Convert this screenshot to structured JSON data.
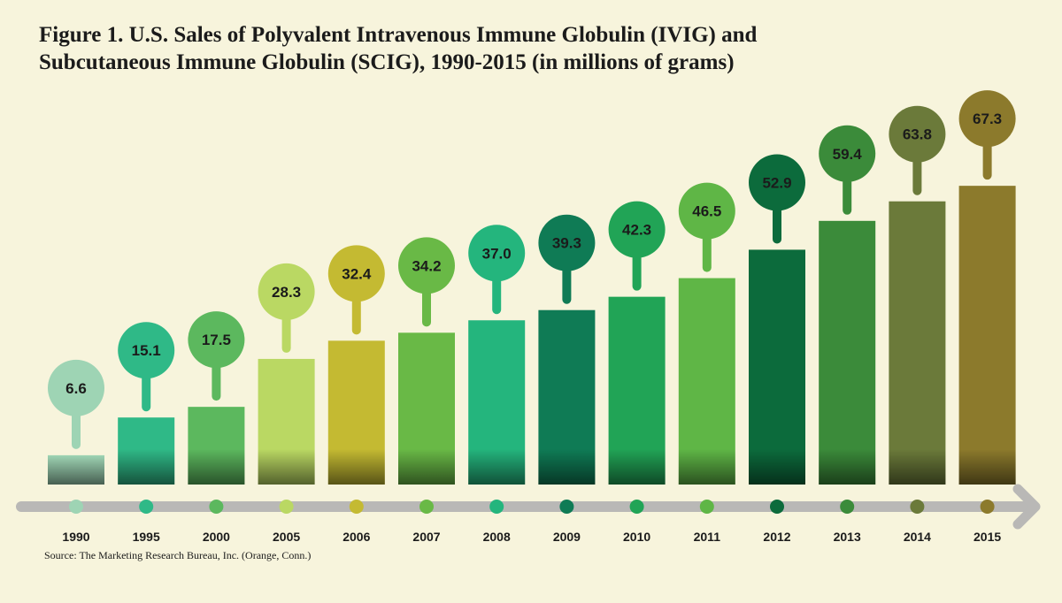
{
  "title_line1": "Figure 1.  U.S. Sales of Polyvalent Intravenous Immune Globulin (IVIG) and",
  "title_line2": "Subcutaneous Immune Globulin (SCIG), 1990-2015 (in millions of grams)",
  "source": "Source: The Marketing Research Bureau, Inc. (Orange, Conn.)",
  "chart_data": {
    "type": "bar",
    "title": "Figure 1.  U.S. Sales of Polyvalent Intravenous Immune Globulin (IVIG) and Subcutaneous Immune Globulin (SCIG), 1990-2015 (in millions of grams)",
    "categories": [
      "1990",
      "1995",
      "2000",
      "2005",
      "2006",
      "2007",
      "2008",
      "2009",
      "2010",
      "2011",
      "2012",
      "2013",
      "2014",
      "2015"
    ],
    "values": [
      6.6,
      15.1,
      17.5,
      28.3,
      32.4,
      34.2,
      37.0,
      39.3,
      42.3,
      46.5,
      52.9,
      59.4,
      63.8,
      67.3
    ],
    "data_labels": [
      "6.6",
      "15.1",
      "17.5",
      "28.3",
      "32.4",
      "34.2",
      "37.0",
      "39.3",
      "42.3",
      "46.5",
      "52.9",
      "59.4",
      "63.8",
      "67.3"
    ],
    "colors": [
      "#9ed4b4",
      "#2fb987",
      "#5cb85e",
      "#bad863",
      "#c4ba32",
      "#69b946",
      "#24b57d",
      "#0f7b55",
      "#21a456",
      "#5fb646",
      "#0c6b3c",
      "#3b8b3a",
      "#6b7a3a",
      "#8c7a2c"
    ],
    "xlabel": "",
    "ylabel": "",
    "ylim": [
      0,
      70
    ],
    "grid": false,
    "legend": "none"
  }
}
